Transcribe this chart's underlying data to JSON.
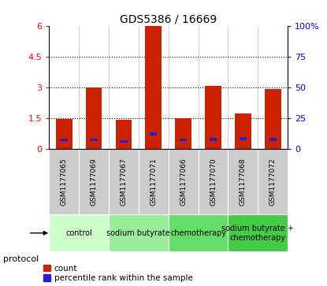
{
  "title": "GDS5386 / 16669",
  "samples": [
    "GSM1177065",
    "GSM1177069",
    "GSM1177067",
    "GSM1177071",
    "GSM1177066",
    "GSM1177070",
    "GSM1177068",
    "GSM1177072"
  ],
  "count_values": [
    1.45,
    3.0,
    1.4,
    6.0,
    1.5,
    3.05,
    1.7,
    2.9
  ],
  "percentile_values": [
    0.42,
    0.42,
    0.35,
    0.72,
    0.42,
    0.45,
    0.48,
    0.45
  ],
  "groups": [
    {
      "label": "control",
      "indices": [
        0,
        1
      ],
      "color": "#ccffcc"
    },
    {
      "label": "sodium butyrate",
      "indices": [
        2,
        3
      ],
      "color": "#99ee99"
    },
    {
      "label": "chemotherapy",
      "indices": [
        4,
        5
      ],
      "color": "#66dd66"
    },
    {
      "label": "sodium butyrate +\nchemotherapy",
      "indices": [
        6,
        7
      ],
      "color": "#44cc44"
    }
  ],
  "ylim_left": [
    0,
    6
  ],
  "ylim_right": [
    0,
    100
  ],
  "yticks_left": [
    0,
    1.5,
    3.0,
    4.5,
    6.0
  ],
  "ytick_labels_left": [
    "0",
    "1.5",
    "3",
    "4.5",
    "6"
  ],
  "yticks_right": [
    0,
    25,
    50,
    75,
    100
  ],
  "ytick_labels_right": [
    "0",
    "25",
    "50",
    "75",
    "100%"
  ],
  "bar_color": "#cc2200",
  "percentile_color": "#2222cc",
  "bar_width": 0.55,
  "sample_box_color": "#cccccc",
  "legend_count_label": "count",
  "legend_percentile_label": "percentile rank within the sample",
  "protocol_label": "protocol"
}
